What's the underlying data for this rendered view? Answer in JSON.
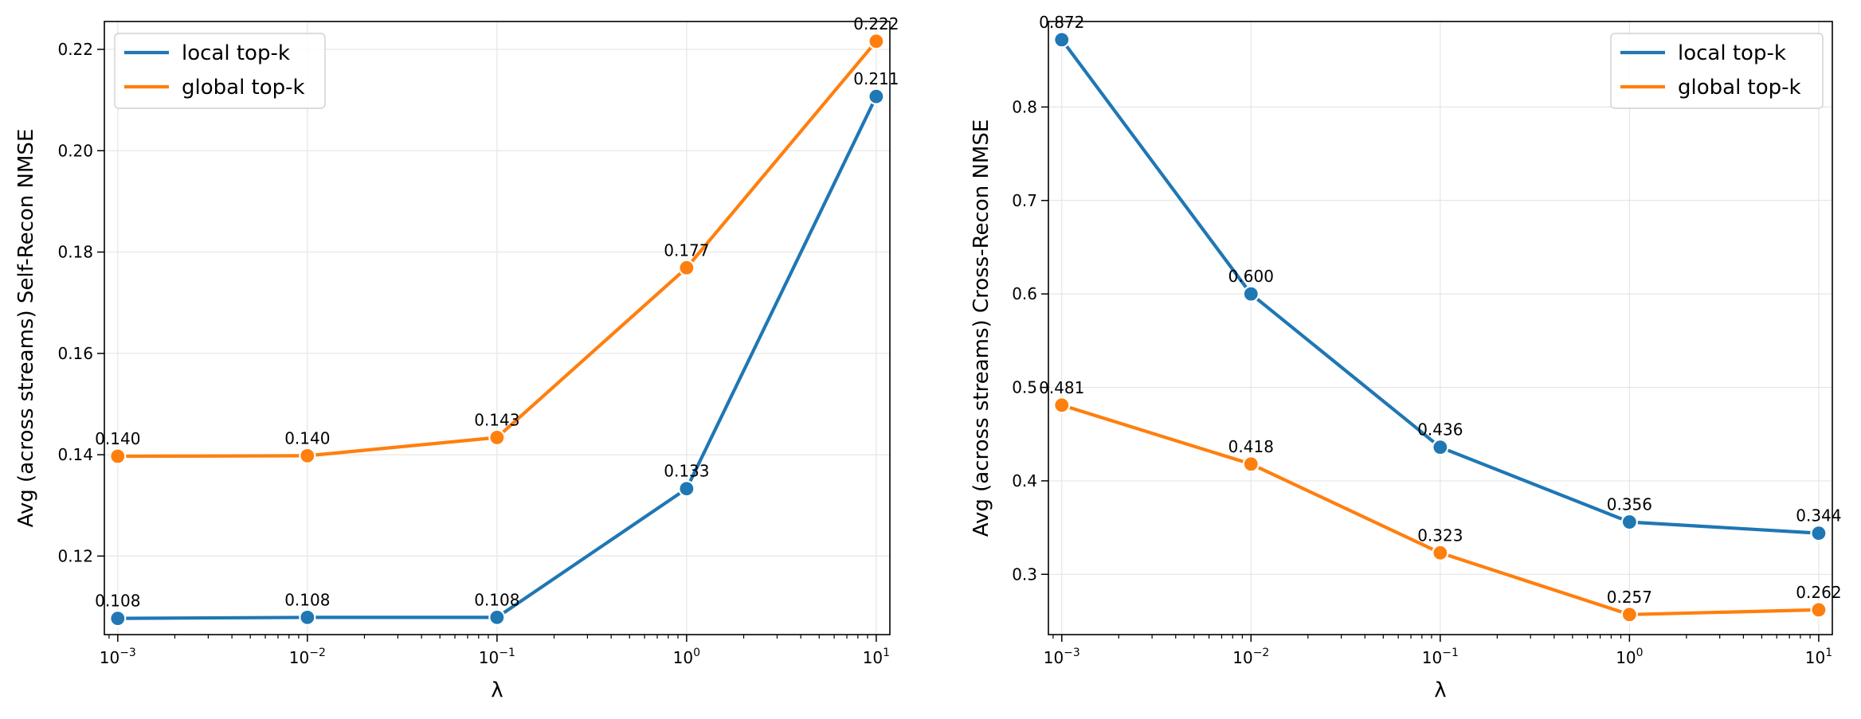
{
  "chart_data": [
    {
      "type": "line",
      "x_scale": "log",
      "x": [
        0.001,
        0.01,
        0.1,
        1,
        10
      ],
      "xtick_labels": [
        {
          "base": "10",
          "exp": "−3"
        },
        {
          "base": "10",
          "exp": "−2"
        },
        {
          "base": "10",
          "exp": "−1"
        },
        {
          "base": "10",
          "exp": "0"
        },
        {
          "base": "10",
          "exp": "1"
        }
      ],
      "xlim": [
        0.00085,
        11.8
      ],
      "ylim": [
        0.1045,
        0.2255
      ],
      "yticks": [
        0.12,
        0.14,
        0.16,
        0.18,
        0.2,
        0.22
      ],
      "ytick_labels": [
        "0.12",
        "0.14",
        "0.16",
        "0.18",
        "0.20",
        "0.22"
      ],
      "xlabel": "λ",
      "ylabel": "Avg (across streams) Self-Recon NMSE",
      "grid": true,
      "legend_position": "upper-left",
      "series": [
        {
          "name": "local top-k",
          "color": "#1f77b4",
          "values": [
            0.1077,
            0.1079,
            0.1079,
            0.1333,
            0.2107
          ],
          "labels": [
            "0.108",
            "0.108",
            "0.108",
            "0.133",
            "0.211"
          ]
        },
        {
          "name": "global top-k",
          "color": "#ff7f0e",
          "values": [
            0.1397,
            0.1398,
            0.1434,
            0.1769,
            0.2216
          ],
          "labels": [
            "0.140",
            "0.140",
            "0.143",
            "0.177",
            "0.222"
          ]
        }
      ]
    },
    {
      "type": "line",
      "x_scale": "log",
      "x": [
        0.001,
        0.01,
        0.1,
        1,
        10
      ],
      "xtick_labels": [
        {
          "base": "10",
          "exp": "−3"
        },
        {
          "base": "10",
          "exp": "−2"
        },
        {
          "base": "10",
          "exp": "−1"
        },
        {
          "base": "10",
          "exp": "0"
        },
        {
          "base": "10",
          "exp": "1"
        }
      ],
      "xlim": [
        0.00085,
        11.8
      ],
      "ylim": [
        0.2355,
        0.8915
      ],
      "yticks": [
        0.3,
        0.4,
        0.5,
        0.6,
        0.7,
        0.8
      ],
      "ytick_labels": [
        "0.3",
        "0.4",
        "0.5",
        "0.6",
        "0.7",
        "0.8"
      ],
      "xlabel": "λ",
      "ylabel": "Avg (across streams) Cross-Recon NMSE",
      "grid": true,
      "legend_position": "upper-right",
      "series": [
        {
          "name": "local top-k",
          "color": "#1f77b4",
          "values": [
            0.872,
            0.6,
            0.436,
            0.356,
            0.344
          ],
          "labels": [
            "0.872",
            "0.600",
            "0.436",
            "0.356",
            "0.344"
          ]
        },
        {
          "name": "global top-k",
          "color": "#ff7f0e",
          "values": [
            0.481,
            0.418,
            0.323,
            0.257,
            0.262
          ],
          "labels": [
            "0.481",
            "0.418",
            "0.323",
            "0.257",
            "0.262"
          ]
        }
      ]
    }
  ]
}
